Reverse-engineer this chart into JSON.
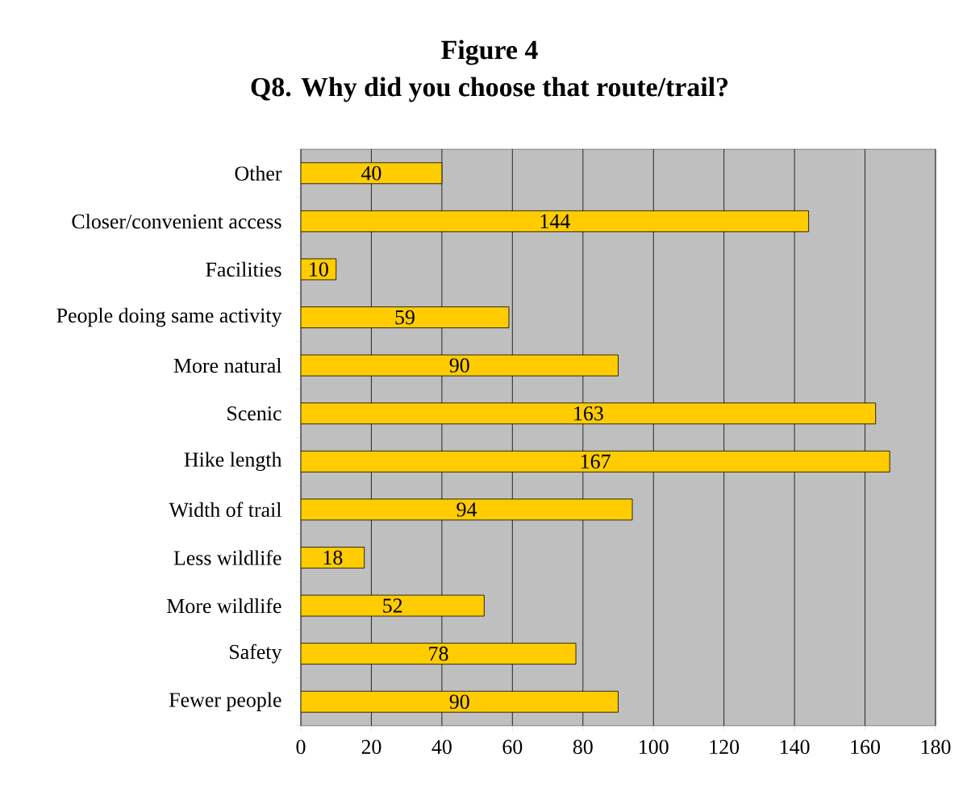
{
  "chart_data": {
    "type": "bar",
    "orientation": "horizontal",
    "title": "Figure 4",
    "subtitle": "Q8. Why did you choose that route/trail?",
    "categories": [
      "Other",
      "Closer/convenient access",
      "Facilities",
      "People doing same activity",
      "More natural",
      "Scenic",
      "Hike length",
      "Width of trail",
      "Less wildlife",
      "More wildlife",
      "Safety",
      "Fewer people"
    ],
    "values": [
      40,
      144,
      10,
      59,
      90,
      163,
      167,
      94,
      18,
      52,
      78,
      90
    ],
    "color": "#ffcc00",
    "xlim": [
      0,
      180
    ],
    "xticks": [
      0,
      20,
      40,
      60,
      80,
      100,
      120,
      140,
      160,
      180
    ],
    "grid": "x",
    "data_labels": true
  }
}
